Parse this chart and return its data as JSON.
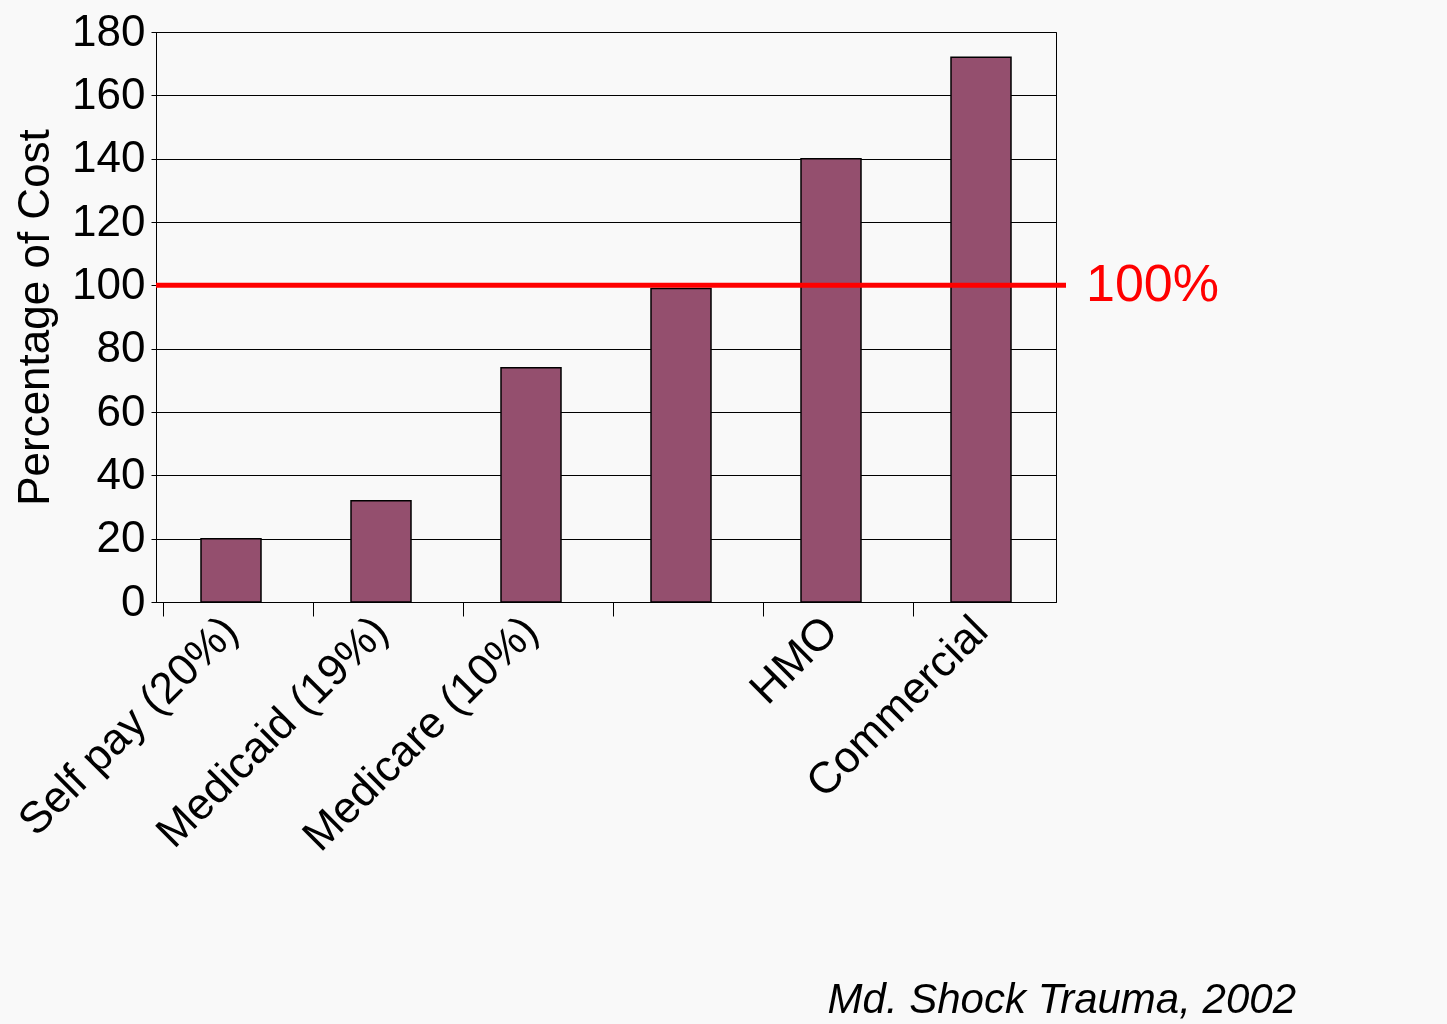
{
  "chart_data": {
    "type": "bar",
    "ylabel": "Percentage of Cost",
    "categories": [
      "Self pay (20%)",
      "Medicaid (19%)",
      "Medicare (10%)",
      null,
      "HMO",
      "Commercial"
    ],
    "values": [
      20,
      32,
      74,
      99,
      140,
      172
    ],
    "color": "#944f6e",
    "ylim": [
      0,
      180
    ],
    "yticks": [
      0,
      20,
      40,
      60,
      80,
      100,
      120,
      140,
      160,
      180
    ],
    "grid": "y",
    "ref_lines": [
      {
        "axis": "y",
        "value": 100,
        "label": "100%",
        "color": "#ff0000"
      }
    ],
    "annotations": [
      "Md. Shock Trauma, 2002"
    ]
  }
}
